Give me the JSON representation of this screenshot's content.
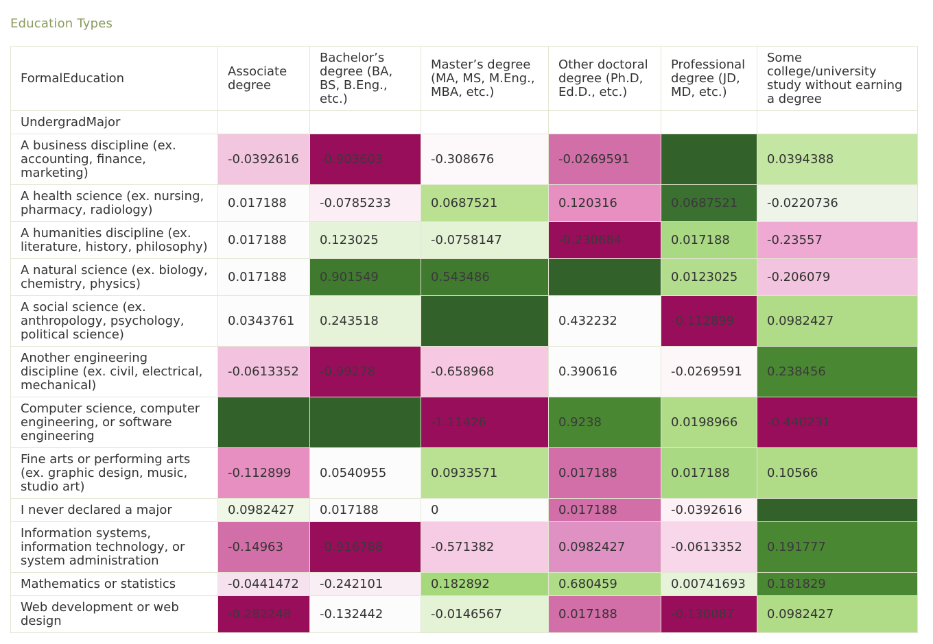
{
  "title": "Education Types",
  "chart_data": {
    "type": "heatmap",
    "column_header_label": "FormalEducation",
    "row_header_label": "UndergradMajor",
    "columns": [
      "Associate degree",
      "Bachelor’s degree (BA, BS, B.Eng., etc.)",
      "Master’s degree (MA, MS, M.Eng., MBA, etc.)",
      "Other doctoral degree (Ph.D, Ed.D., etc.)",
      "Professional degree (JD, MD, etc.)",
      "Some college/university study without earning a degree"
    ],
    "rows": [
      "A business discipline (ex. accounting, finance, marketing)",
      "A health science (ex. nursing, pharmacy, radiology)",
      "A humanities discipline (ex. literature, history, philosophy)",
      "A natural science (ex. biology, chemistry, physics)",
      "A social science (ex. anthropology, psychology, political science)",
      "Another engineering discipline (ex. civil, electrical, mechanical)",
      "Computer science, computer engineering, or software engineering",
      "Fine arts or performing arts (ex. graphic design, music, studio art)",
      "I never declared a major",
      "Information systems, information technology, or system administration",
      "Mathematics or statistics",
      "Web development or web design"
    ],
    "values": [
      [
        "-0.0392616",
        "-0.903603",
        "-0.308676",
        "-0.0269591",
        "",
        "0.0394388"
      ],
      [
        "0.017188",
        "-0.0785233",
        "0.0687521",
        "0.120316",
        "0.0687521",
        "-0.0220736"
      ],
      [
        "0.017188",
        "0.123025",
        "-0.0758147",
        "-0.230684",
        "0.017188",
        "-0.23557"
      ],
      [
        "0.017188",
        "0.901549",
        "0.543486",
        "",
        "0.0123025",
        "-0.206079"
      ],
      [
        "0.0343761",
        "0.243518",
        "",
        "0.432232",
        "-0.112899",
        "0.0982427"
      ],
      [
        "-0.0613352",
        "-0.99278",
        "-0.658968",
        "0.390616",
        "-0.0269591",
        "0.238456"
      ],
      [
        "",
        "",
        "-1.11426",
        "0.9238",
        "0.0198966",
        "-0.440231"
      ],
      [
        "-0.112899",
        "0.0540955",
        "0.0933571",
        "0.017188",
        "0.017188",
        "0.10566"
      ],
      [
        "0.0982427",
        "0.017188",
        "0",
        "0.017188",
        "-0.0392616",
        ""
      ],
      [
        "-0.14963",
        "-0.916788",
        "-0.571382",
        "0.0982427",
        "-0.0613352",
        "0.191777"
      ],
      [
        "-0.0441472",
        "-0.242101",
        "0.182892",
        "0.680459",
        "0.00741693",
        "0.181829"
      ],
      [
        "-0.282248",
        "-0.132442",
        "-0.0146567",
        "0.017188",
        "-0.130087",
        "0.0982427"
      ]
    ],
    "colors": [
      [
        "#f2c6de",
        "#980e5b",
        "#fdf9fb",
        "#d36fa8",
        "#33612a",
        "#c4e6a3"
      ],
      [
        "#fcfcfc",
        "#fbeef5",
        "#b9e191",
        "#e78fc0",
        "#3a7030",
        "#eef5e8"
      ],
      [
        "#fcfcfc",
        "#e5f3d8",
        "#e4f2d6",
        "#980e5b",
        "#aad984",
        "#eeaad3"
      ],
      [
        "#fcfcfc",
        "#3f7a2f",
        "#3f7a2f",
        "#33612a",
        "#b2dd8d",
        "#f3c4df"
      ],
      [
        "#fcfcfc",
        "#e6f3d9",
        "#33612a",
        "#fcfcfc",
        "#980e5b",
        "#b0dc88"
      ],
      [
        "#f3c2df",
        "#980e5b",
        "#f7c8e1",
        "#fcfcfc",
        "#fdf7fa",
        "#4a8733"
      ],
      [
        "#33612a",
        "#33612a",
        "#980e5b",
        "#4a8733",
        "#b0dc88",
        "#980e5b"
      ],
      [
        "#e88fc1",
        "#fcfcfc",
        "#b9e191",
        "#d36fa8",
        "#aad984",
        "#b0dc88"
      ],
      [
        "#eff8e6",
        "#fcfcfc",
        "#fcfcfc",
        "#d36fa8",
        "#fdf0f6",
        "#33612a"
      ],
      [
        "#d36fa8",
        "#980e5b",
        "#f6cce4",
        "#e091c3",
        "#f9d7ea",
        "#4a8733"
      ],
      [
        "#f6e2ee",
        "#faeef5",
        "#a6d97c",
        "#b0dc88",
        "#e6f3d9",
        "#4a8733"
      ],
      [
        "#980e5b",
        "#fcfcfc",
        "#e4f2d6",
        "#d36fa8",
        "#980e5b",
        "#b0dc88"
      ]
    ]
  }
}
